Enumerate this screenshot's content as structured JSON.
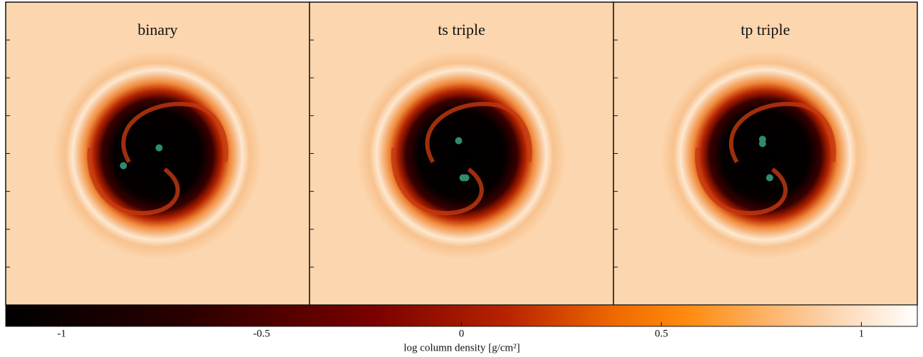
{
  "chart_data": {
    "type": "density-map",
    "panels": [
      {
        "title": "binary"
      },
      {
        "title": "ts triple"
      },
      {
        "title": "tp triple"
      }
    ],
    "colorbar": {
      "label": "log column density [g/cm²]",
      "lim": [
        -1.14,
        1.14
      ],
      "ticks": [
        -1,
        -0.5,
        0,
        0.5,
        1
      ]
    }
  }
}
